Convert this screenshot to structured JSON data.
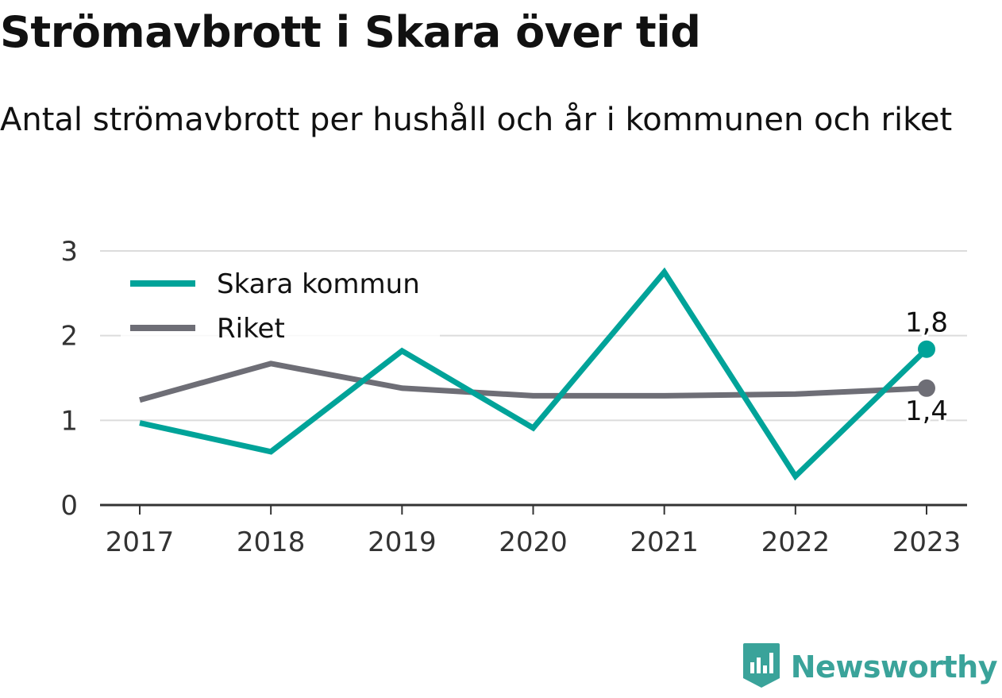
{
  "header": {
    "title": "Strömavbrott i Skara över tid",
    "subtitle": "Antal strömavbrott per hushåll och år i kommunen och riket"
  },
  "brand": {
    "name": "Newsworthy",
    "icon": "newsworthy-logo-icon",
    "color": "#3aa39a"
  },
  "chart_data": {
    "type": "line",
    "title": "Strömavbrott i Skara över tid",
    "subtitle": "Antal strömavbrott per hushåll och år i kommunen och riket",
    "xlabel": "",
    "ylabel": "",
    "x": [
      "2017",
      "2018",
      "2019",
      "2020",
      "2021",
      "2022",
      "2023"
    ],
    "ylim": [
      0,
      3
    ],
    "yticks": [
      "0",
      "1",
      "2",
      "3"
    ],
    "grid": true,
    "legend": "top-left",
    "series": [
      {
        "name": "Skara kommun",
        "color": "#00a399",
        "values": [
          0.97,
          0.63,
          1.82,
          0.91,
          2.75,
          0.34,
          1.84
        ],
        "end_label": "1,8"
      },
      {
        "name": "Riket",
        "color": "#6e6e76",
        "values": [
          1.24,
          1.67,
          1.38,
          1.29,
          1.29,
          1.31,
          1.38
        ],
        "end_label": "1,4"
      }
    ]
  }
}
